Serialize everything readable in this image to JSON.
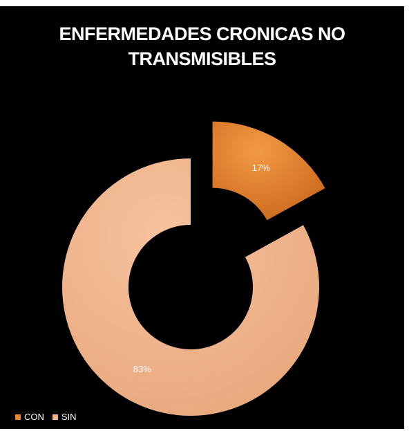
{
  "chart_data": {
    "type": "pie",
    "variant": "doughnut-exploded",
    "title_lines": [
      "ENFERMEDADES CRONICAS NO",
      "TRANSMISIBLES"
    ],
    "categories": [
      "CON",
      "SIN"
    ],
    "values": [
      17,
      83
    ],
    "labels": [
      "17%",
      "83%"
    ],
    "colors": [
      "#e8852e",
      "#f2b38a"
    ],
    "legend": "bottom-left"
  }
}
